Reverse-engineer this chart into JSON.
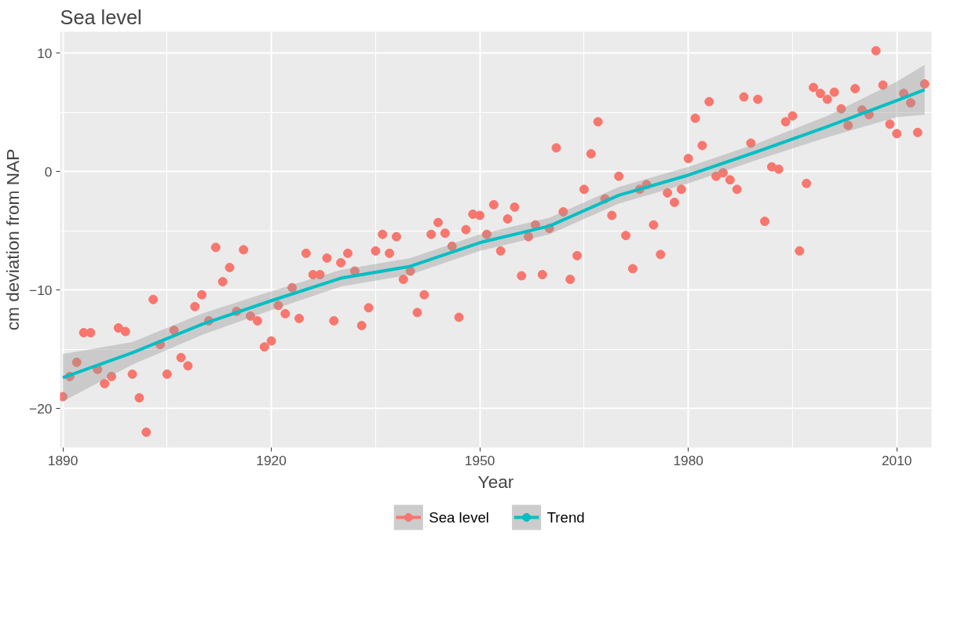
{
  "chart_data": {
    "type": "scatter",
    "title": "Sea level",
    "xlabel": "Year",
    "ylabel": "cm deviation from NAP",
    "xlim": [
      1889.6,
      2015
    ],
    "ylim": [
      -23.3,
      11.8
    ],
    "xticks": [
      1890,
      1920,
      1950,
      1980,
      2010
    ],
    "yticks": [
      -20,
      -10,
      0,
      10
    ],
    "grid": true,
    "legend": "bottom",
    "marker": "circle",
    "x": [
      1890,
      1891,
      1892,
      1893,
      1894,
      1895,
      1896,
      1897,
      1898,
      1899,
      1900,
      1901,
      1902,
      1903,
      1904,
      1905,
      1906,
      1907,
      1908,
      1909,
      1910,
      1911,
      1912,
      1913,
      1914,
      1915,
      1916,
      1917,
      1918,
      1919,
      1920,
      1921,
      1922,
      1923,
      1924,
      1925,
      1926,
      1927,
      1928,
      1929,
      1930,
      1931,
      1932,
      1933,
      1934,
      1935,
      1936,
      1937,
      1938,
      1939,
      1940,
      1941,
      1942,
      1943,
      1944,
      1945,
      1946,
      1947,
      1948,
      1949,
      1950,
      1951,
      1952,
      1953,
      1954,
      1955,
      1956,
      1957,
      1958,
      1959,
      1960,
      1961,
      1962,
      1963,
      1964,
      1965,
      1966,
      1967,
      1968,
      1969,
      1970,
      1971,
      1972,
      1973,
      1974,
      1975,
      1976,
      1977,
      1978,
      1979,
      1980,
      1981,
      1982,
      1983,
      1984,
      1985,
      1986,
      1987,
      1988,
      1989,
      1990,
      1991,
      1992,
      1993,
      1994,
      1995,
      1996,
      1997,
      1998,
      1999,
      2000,
      2001,
      2002,
      2003,
      2004,
      2005,
      2006,
      2007,
      2008,
      2009,
      2010,
      2011,
      2012,
      2013,
      2014
    ],
    "series": [
      {
        "name": "Sea level",
        "color": "#f8766d",
        "values": [
          -19.0,
          -17.3,
          -16.1,
          -13.6,
          -13.6,
          -16.7,
          -17.9,
          -17.3,
          -13.2,
          -13.5,
          -17.1,
          -19.1,
          -22.0,
          -10.8,
          -14.6,
          -17.1,
          -13.4,
          -15.7,
          -16.4,
          -11.4,
          -10.4,
          -12.6,
          -6.4,
          -9.3,
          -8.1,
          -11.8,
          -6.6,
          -12.2,
          -12.6,
          -14.8,
          -14.3,
          -11.3,
          -12.0,
          -9.8,
          -12.4,
          -6.9,
          -8.7,
          -8.7,
          -7.3,
          -12.6,
          -7.7,
          -6.9,
          -8.4,
          -13.0,
          -11.5,
          -6.7,
          -5.3,
          -6.9,
          -5.5,
          -9.1,
          -8.4,
          -11.9,
          -10.4,
          -5.3,
          -4.3,
          -5.2,
          -6.3,
          -12.3,
          -4.9,
          -3.6,
          -3.7,
          -5.3,
          -2.8,
          -6.7,
          -4.0,
          -3.0,
          -8.8,
          -5.5,
          -4.5,
          -8.7,
          -4.8,
          2.0,
          -3.4,
          -9.1,
          -7.1,
          -1.5,
          1.5,
          4.2,
          -2.3,
          -3.7,
          -0.4,
          -5.4,
          -8.2,
          -1.5,
          -1.1,
          -4.5,
          -7.0,
          -1.8,
          -2.6,
          -1.5,
          1.1,
          4.5,
          2.2,
          5.9,
          -0.4,
          -0.1,
          -0.7,
          -1.5,
          6.3,
          2.4,
          6.1,
          -4.2,
          0.4,
          0.2,
          4.2,
          4.7,
          -6.7,
          -1.0,
          7.1,
          6.6,
          6.1,
          6.7,
          5.3,
          3.9,
          7.0,
          5.2,
          4.8,
          10.2,
          7.3,
          4.0,
          3.2,
          6.6,
          5.8,
          3.3,
          7.4
        ]
      },
      {
        "name": "Trend",
        "type": "line",
        "marker": "none",
        "color": "#00bfc4",
        "x": [
          1890,
          1900,
          1910,
          1920,
          1930,
          1940,
          1950,
          1960,
          1970,
          1980,
          1990,
          2000,
          2010,
          2014
        ],
        "values": [
          -17.4,
          -15.3,
          -12.9,
          -10.9,
          -9.0,
          -8.0,
          -6.0,
          -4.6,
          -2.0,
          -0.3,
          1.7,
          3.8,
          6.0,
          6.9
        ],
        "lower": [
          -19.4,
          -16.3,
          -13.8,
          -11.7,
          -9.7,
          -8.7,
          -6.7,
          -5.3,
          -2.7,
          -1.0,
          1.0,
          2.9,
          4.6,
          4.8
        ],
        "upper": [
          -15.4,
          -14.4,
          -12.0,
          -10.1,
          -8.3,
          -7.3,
          -5.3,
          -3.9,
          -1.3,
          0.4,
          2.4,
          4.7,
          7.6,
          9.0
        ]
      }
    ]
  }
}
